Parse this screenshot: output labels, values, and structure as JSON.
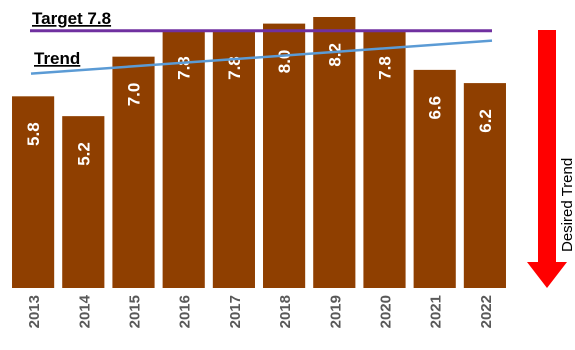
{
  "chart_data": {
    "type": "bar",
    "categories": [
      "2013",
      "2014",
      "2015",
      "2016",
      "2017",
      "2018",
      "2019",
      "2020",
      "2021",
      "2022"
    ],
    "values": [
      5.8,
      5.2,
      7.0,
      7.8,
      7.8,
      8.0,
      8.2,
      7.8,
      6.6,
      6.2
    ],
    "value_labels": [
      "5.8",
      "5.2",
      "7.0",
      "7.8",
      "7.8",
      "8.0",
      "8.2",
      "7.8",
      "6.6",
      "6.2"
    ],
    "ylim": [
      0,
      8.2
    ],
    "reference_lines": [
      {
        "label": "Target 7.8",
        "value": 7.8,
        "color": "#7030a0"
      },
      {
        "label": "Trend",
        "start": 6.5,
        "end": 7.5,
        "color": "#5b9bd5"
      }
    ],
    "annotation": {
      "label": "Desired Trend",
      "direction": "down",
      "color": "#ff0000"
    },
    "bar_color": "#8f3f00"
  }
}
